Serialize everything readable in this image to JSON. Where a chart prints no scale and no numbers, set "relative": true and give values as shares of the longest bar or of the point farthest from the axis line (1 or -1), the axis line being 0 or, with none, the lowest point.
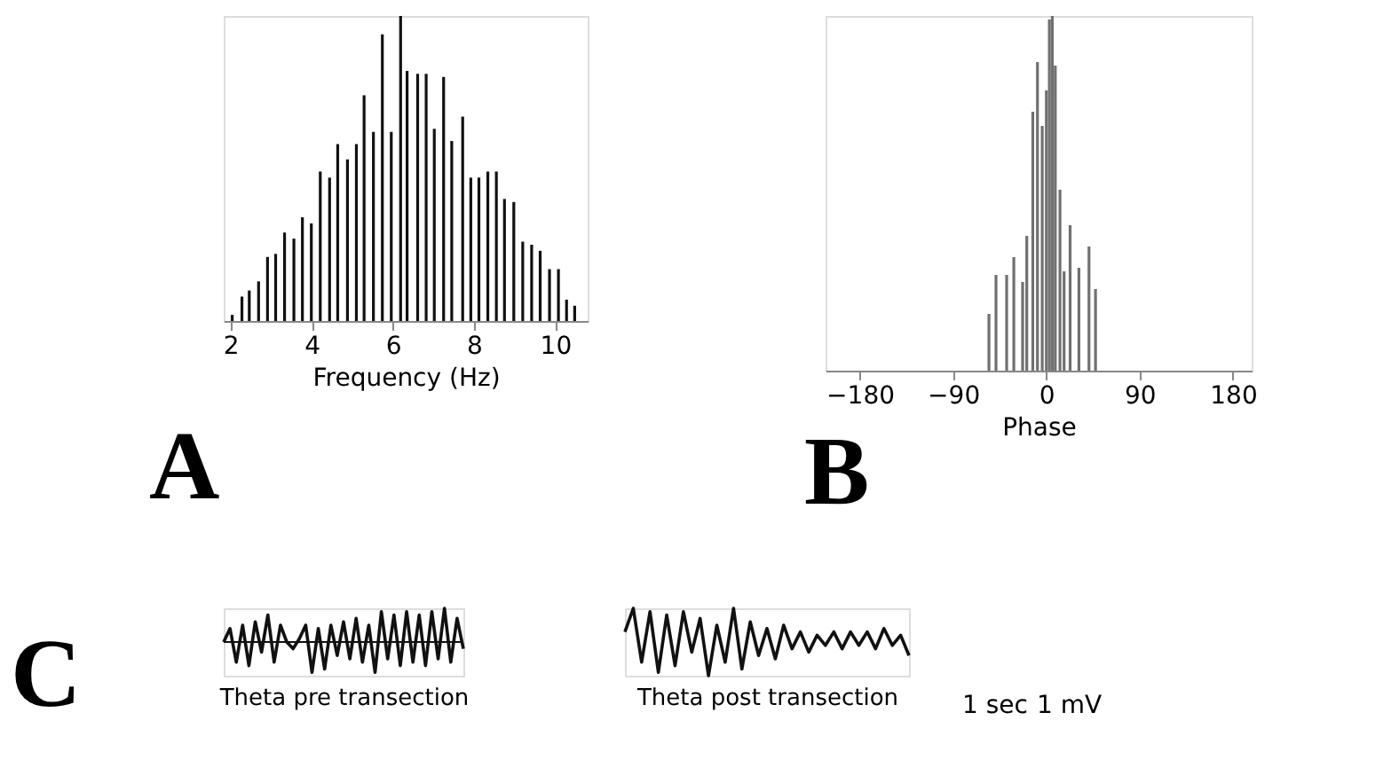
{
  "chart_data": [
    {
      "type": "bar",
      "relative": true,
      "xlabel": "Frequency (Hz)",
      "color": "#111111",
      "xlim": [
        1.83,
        10.8
      ],
      "xticks": [
        2,
        4,
        6,
        8,
        10
      ],
      "tick_labels": "x",
      "grid": false,
      "annotations": [
        "A"
      ],
      "x": [
        2.04,
        2.28,
        2.46,
        2.69,
        2.91,
        3.11,
        3.33,
        3.56,
        3.77,
        3.99,
        4.21,
        4.44,
        4.64,
        4.88,
        5.1,
        5.29,
        5.52,
        5.74,
        5.96,
        6.19,
        6.35,
        6.61,
        6.82,
        7.02,
        7.25,
        7.45,
        7.72,
        7.92,
        8.12,
        8.34,
        8.55,
        8.75,
        8.98,
        9.2,
        9.42,
        9.63,
        9.86,
        10.08,
        10.28,
        10.48
      ],
      "values": [
        0.02,
        0.08,
        0.1,
        0.13,
        0.21,
        0.22,
        0.29,
        0.27,
        0.34,
        0.32,
        0.49,
        0.47,
        0.58,
        0.53,
        0.58,
        0.74,
        0.62,
        0.94,
        0.62,
        1.0,
        0.82,
        0.81,
        0.81,
        0.63,
        0.8,
        0.59,
        0.67,
        0.47,
        0.47,
        0.49,
        0.49,
        0.4,
        0.39,
        0.26,
        0.25,
        0.23,
        0.17,
        0.17,
        0.07,
        0.05
      ]
    },
    {
      "type": "bar",
      "relative": true,
      "xlabel": "Phase",
      "color": "#707070",
      "xlim": [
        -213,
        198
      ],
      "xticks": [
        -180,
        -90,
        0,
        90,
        180
      ],
      "tick_labels": "x",
      "grid": false,
      "annotations": [
        "B"
      ],
      "x": [
        -55.4,
        -48.6,
        -38.3,
        -31.4,
        -22.9,
        -18.9,
        -13.1,
        -8.6,
        -4,
        0,
        2.9,
        5.7,
        8.6,
        13.1,
        17.1,
        22.9,
        31.4,
        41.1,
        47.4
      ],
      "values": [
        0.16,
        0.27,
        0.27,
        0.32,
        0.25,
        0.38,
        0.73,
        0.87,
        0.69,
        0.79,
        0.99,
        1.0,
        0.86,
        0.51,
        0.28,
        0.41,
        0.29,
        0.35,
        0.23
      ]
    },
    {
      "type": "line",
      "relative": true,
      "xlabel": "Theta pre transection",
      "color": "#111111",
      "tick_labels": false,
      "grid": false,
      "annotations": [
        "C"
      ],
      "categories": [
        null,
        null,
        null,
        null,
        null,
        null,
        null,
        null,
        null,
        null,
        null,
        null,
        null,
        null,
        null,
        null,
        null,
        null,
        null,
        null,
        null,
        null,
        null,
        null,
        null,
        null,
        null,
        null,
        null,
        null,
        null,
        null,
        null,
        null,
        null,
        null,
        null,
        null,
        null
      ],
      "values": [
        0,
        0.4,
        -0.6,
        0.5,
        -0.7,
        0.6,
        -0.3,
        0.8,
        -0.6,
        0.5,
        0,
        -0.2,
        0.1,
        0.5,
        -0.9,
        0.4,
        -0.8,
        0.5,
        -0.4,
        0.6,
        -0.5,
        0.7,
        -0.6,
        0.5,
        -0.9,
        0.9,
        -0.5,
        0.8,
        -0.7,
        0.9,
        -0.6,
        0.8,
        -0.7,
        0.9,
        -0.5,
        1.0,
        -0.6,
        0.7,
        -0.2
      ]
    },
    {
      "type": "line",
      "relative": true,
      "xlabel": "Theta post transection",
      "color": "#111111",
      "tick_labels": false,
      "grid": false,
      "annotations": [
        "1 sec",
        "1 mV"
      ],
      "categories": [
        null,
        null,
        null,
        null,
        null,
        null,
        null,
        null,
        null,
        null,
        null,
        null,
        null,
        null,
        null,
        null,
        null,
        null,
        null,
        null,
        null,
        null,
        null,
        null,
        null,
        null,
        null,
        null,
        null,
        null,
        null,
        null,
        null,
        null,
        null
      ],
      "values": [
        0.65,
        1,
        0.2,
        0.95,
        0.05,
        0.9,
        0.15,
        0.95,
        0.35,
        0.85,
        0,
        0.75,
        0.2,
        1,
        0.1,
        0.8,
        0.3,
        0.7,
        0.25,
        0.75,
        0.4,
        0.65,
        0.35,
        0.6,
        0.45,
        0.65,
        0.4,
        0.65,
        0.45,
        0.65,
        0.4,
        0.7,
        0.45,
        0.6,
        0.3
      ]
    }
  ]
}
